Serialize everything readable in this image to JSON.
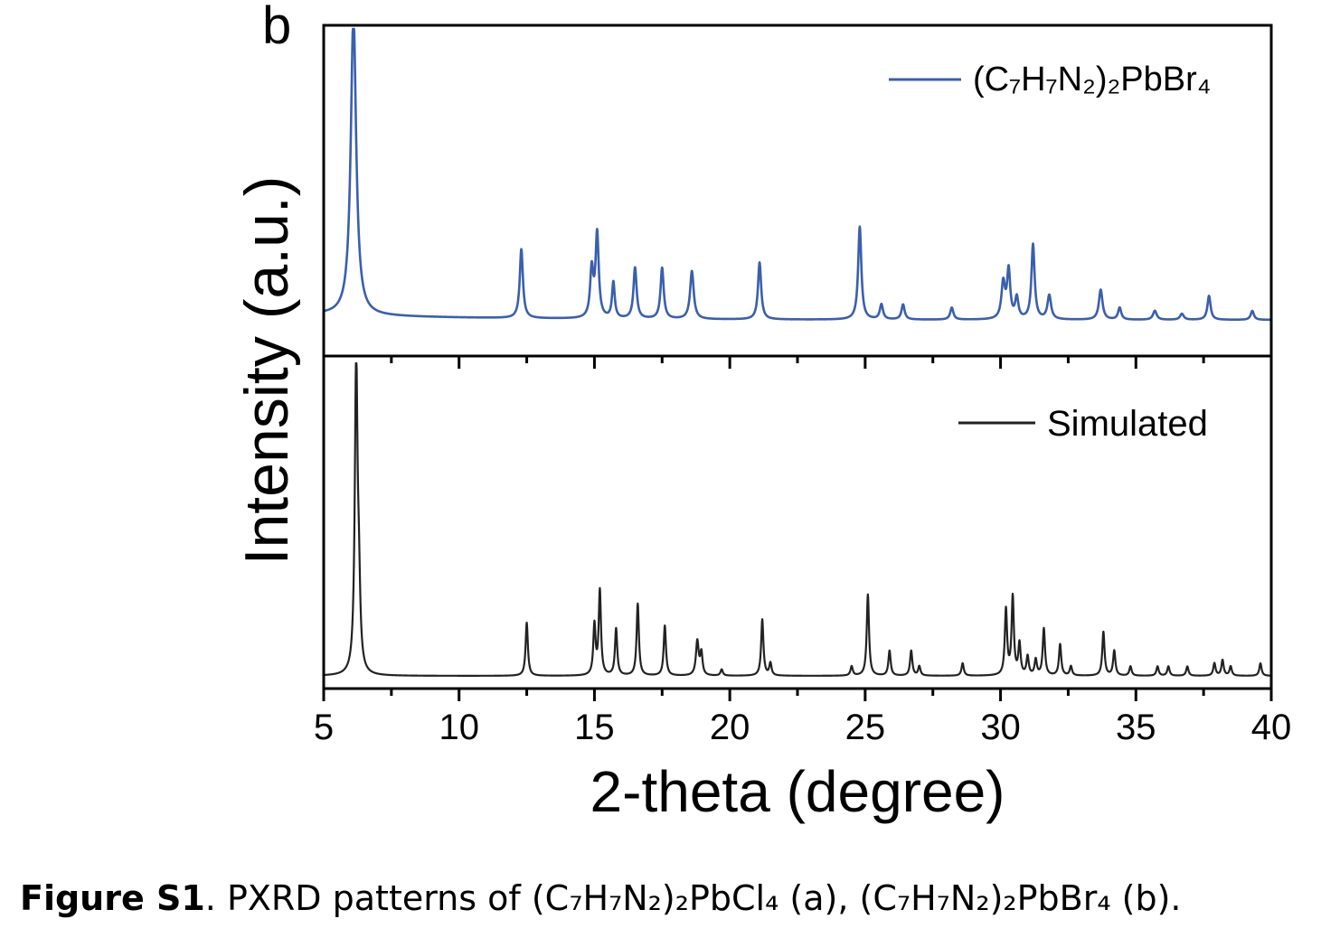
{
  "panel_label": "b",
  "caption": {
    "label": "Figure S1",
    "text": ". PXRD patterns of (C₇H₇N₂)₂PbCl₄ (a), (C₇H₇N₂)₂PbBr₄ (b)."
  },
  "colors": {
    "experimental": "#3a5fad",
    "simulated": "#222222",
    "axis": "#000000"
  },
  "chart_data": {
    "type": "line",
    "xlabel": "2-theta (degree)",
    "ylabel": "Intensity (a.u.)",
    "xlim": [
      5,
      40
    ],
    "x_ticks": [
      5,
      10,
      15,
      20,
      25,
      30,
      35,
      40
    ],
    "x_minor_step": 2.5,
    "grid": false,
    "legend_position": "top-right",
    "panels": [
      {
        "series_name": "(C₇H₇N₂)₂PbBr₄",
        "color": "#3a5fad",
        "baseline": 0.03,
        "ylim": [
          0,
          1.0
        ],
        "peaks": [
          {
            "x": 6.1,
            "h": 1.0,
            "w": 0.12
          },
          {
            "x": 12.3,
            "h": 0.23,
            "w": 0.07
          },
          {
            "x": 14.9,
            "h": 0.16,
            "w": 0.07
          },
          {
            "x": 15.1,
            "h": 0.28,
            "w": 0.07
          },
          {
            "x": 15.7,
            "h": 0.12,
            "w": 0.06
          },
          {
            "x": 16.5,
            "h": 0.17,
            "w": 0.07
          },
          {
            "x": 17.5,
            "h": 0.17,
            "w": 0.07
          },
          {
            "x": 18.6,
            "h": 0.16,
            "w": 0.08
          },
          {
            "x": 21.1,
            "h": 0.19,
            "w": 0.07
          },
          {
            "x": 24.8,
            "h": 0.31,
            "w": 0.07
          },
          {
            "x": 25.6,
            "h": 0.05,
            "w": 0.07
          },
          {
            "x": 26.4,
            "h": 0.05,
            "w": 0.07
          },
          {
            "x": 28.2,
            "h": 0.04,
            "w": 0.07
          },
          {
            "x": 30.1,
            "h": 0.12,
            "w": 0.08
          },
          {
            "x": 30.3,
            "h": 0.16,
            "w": 0.07
          },
          {
            "x": 30.6,
            "h": 0.07,
            "w": 0.07
          },
          {
            "x": 31.2,
            "h": 0.25,
            "w": 0.07
          },
          {
            "x": 31.8,
            "h": 0.08,
            "w": 0.08
          },
          {
            "x": 33.7,
            "h": 0.1,
            "w": 0.08
          },
          {
            "x": 34.4,
            "h": 0.04,
            "w": 0.07
          },
          {
            "x": 35.7,
            "h": 0.03,
            "w": 0.08
          },
          {
            "x": 36.7,
            "h": 0.02,
            "w": 0.08
          },
          {
            "x": 37.7,
            "h": 0.08,
            "w": 0.07
          },
          {
            "x": 39.3,
            "h": 0.03,
            "w": 0.07
          }
        ]
      },
      {
        "series_name": "Simulated",
        "color": "#222222",
        "baseline": 0.0,
        "ylim": [
          0,
          1.0
        ],
        "peaks": [
          {
            "x": 6.2,
            "h": 1.0,
            "w": 0.06
          },
          {
            "x": 6.3,
            "h": 0.22,
            "w": 0.06
          },
          {
            "x": 12.5,
            "h": 0.17,
            "w": 0.05
          },
          {
            "x": 15.0,
            "h": 0.16,
            "w": 0.05
          },
          {
            "x": 15.2,
            "h": 0.27,
            "w": 0.05
          },
          {
            "x": 15.8,
            "h": 0.15,
            "w": 0.05
          },
          {
            "x": 16.6,
            "h": 0.23,
            "w": 0.05
          },
          {
            "x": 17.6,
            "h": 0.16,
            "w": 0.05
          },
          {
            "x": 18.8,
            "h": 0.11,
            "w": 0.06
          },
          {
            "x": 18.95,
            "h": 0.07,
            "w": 0.05
          },
          {
            "x": 19.7,
            "h": 0.02,
            "w": 0.05
          },
          {
            "x": 21.2,
            "h": 0.18,
            "w": 0.05
          },
          {
            "x": 21.5,
            "h": 0.04,
            "w": 0.05
          },
          {
            "x": 24.5,
            "h": 0.03,
            "w": 0.05
          },
          {
            "x": 25.1,
            "h": 0.26,
            "w": 0.05
          },
          {
            "x": 25.9,
            "h": 0.08,
            "w": 0.05
          },
          {
            "x": 26.7,
            "h": 0.08,
            "w": 0.05
          },
          {
            "x": 27.0,
            "h": 0.03,
            "w": 0.05
          },
          {
            "x": 28.6,
            "h": 0.04,
            "w": 0.05
          },
          {
            "x": 30.2,
            "h": 0.21,
            "w": 0.05
          },
          {
            "x": 30.45,
            "h": 0.25,
            "w": 0.05
          },
          {
            "x": 30.7,
            "h": 0.1,
            "w": 0.05
          },
          {
            "x": 31.0,
            "h": 0.06,
            "w": 0.05
          },
          {
            "x": 31.3,
            "h": 0.05,
            "w": 0.05
          },
          {
            "x": 31.6,
            "h": 0.15,
            "w": 0.05
          },
          {
            "x": 32.2,
            "h": 0.1,
            "w": 0.05
          },
          {
            "x": 32.6,
            "h": 0.03,
            "w": 0.05
          },
          {
            "x": 33.8,
            "h": 0.14,
            "w": 0.05
          },
          {
            "x": 34.2,
            "h": 0.08,
            "w": 0.05
          },
          {
            "x": 34.8,
            "h": 0.03,
            "w": 0.05
          },
          {
            "x": 35.8,
            "h": 0.03,
            "w": 0.05
          },
          {
            "x": 36.2,
            "h": 0.03,
            "w": 0.05
          },
          {
            "x": 36.9,
            "h": 0.03,
            "w": 0.05
          },
          {
            "x": 37.9,
            "h": 0.04,
            "w": 0.05
          },
          {
            "x": 38.2,
            "h": 0.05,
            "w": 0.05
          },
          {
            "x": 38.5,
            "h": 0.03,
            "w": 0.05
          },
          {
            "x": 39.6,
            "h": 0.04,
            "w": 0.05
          }
        ]
      }
    ]
  }
}
